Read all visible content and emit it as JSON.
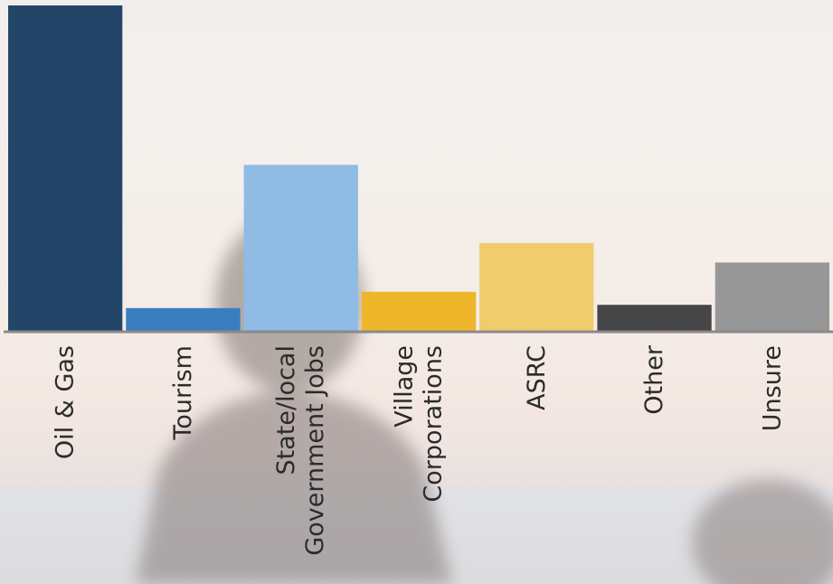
{
  "chart_data": {
    "type": "bar",
    "title": "",
    "xlabel": "",
    "ylabel": "",
    "ylim": [
      0,
      100
    ],
    "grid": false,
    "legend": "none",
    "categories": [
      [
        "Oil & Gas"
      ],
      [
        "Tourism"
      ],
      [
        "State/local",
        "Government Jobs"
      ],
      [
        "Village",
        "Corporations"
      ],
      [
        "ASRC"
      ],
      [
        "Other"
      ],
      [
        "Unsure"
      ]
    ],
    "values": [
      100,
      7,
      51,
      12,
      27,
      8,
      21
    ],
    "colors": [
      "#234668",
      "#3a7ebf",
      "#8fbbe5",
      "#eeb62b",
      "#f1cc6d",
      "#464648",
      "#979797"
    ],
    "axis_color": "#8a8a8a",
    "label_color": "#2b2b2b"
  }
}
